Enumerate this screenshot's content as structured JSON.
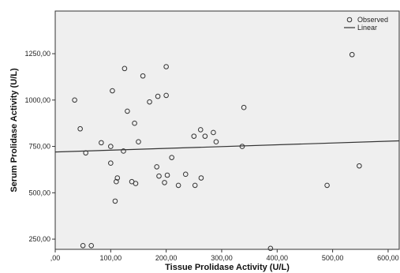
{
  "chart_data": {
    "type": "scatter",
    "xlabel": "Tissue Prolidase Activity (U/L)",
    "ylabel": "Serum Prolidase Activity (U/L)",
    "xlim": [
      0,
      620
    ],
    "ylim": [
      195,
      1480
    ],
    "x_ticks": [
      ",00",
      "100,00",
      "200,00",
      "300,00",
      "400,00",
      "500,00",
      "600,00"
    ],
    "x_tick_values": [
      0,
      100,
      200,
      300,
      400,
      500,
      600
    ],
    "y_ticks": [
      "250,00",
      "500,00",
      "750,00",
      "1000,00",
      "1250,00"
    ],
    "y_tick_values": [
      250,
      500,
      750,
      1000,
      1250
    ],
    "legend": {
      "observed": "Observed",
      "linear": "Linear",
      "position": "top-right"
    },
    "grid": false,
    "series": [
      {
        "name": "Observed",
        "points": [
          [
            35,
            1000
          ],
          [
            45,
            845
          ],
          [
            50,
            215
          ],
          [
            55,
            715
          ],
          [
            65,
            215
          ],
          [
            83,
            770
          ],
          [
            100,
            750
          ],
          [
            100,
            660
          ],
          [
            103,
            1050
          ],
          [
            108,
            455
          ],
          [
            110,
            560
          ],
          [
            112,
            580
          ],
          [
            123,
            725
          ],
          [
            125,
            1170
          ],
          [
            130,
            940
          ],
          [
            138,
            560
          ],
          [
            143,
            875
          ],
          [
            145,
            550
          ],
          [
            150,
            775
          ],
          [
            158,
            1130
          ],
          [
            170,
            990
          ],
          [
            183,
            640
          ],
          [
            185,
            1020
          ],
          [
            187,
            590
          ],
          [
            197,
            555
          ],
          [
            200,
            1025
          ],
          [
            200,
            1180
          ],
          [
            202,
            595
          ],
          [
            210,
            690
          ],
          [
            222,
            540
          ],
          [
            235,
            600
          ],
          [
            250,
            805
          ],
          [
            252,
            540
          ],
          [
            262,
            840
          ],
          [
            263,
            580
          ],
          [
            270,
            805
          ],
          [
            285,
            825
          ],
          [
            290,
            775
          ],
          [
            337,
            750
          ],
          [
            340,
            960
          ],
          [
            388,
            200
          ],
          [
            490,
            540
          ],
          [
            535,
            1245
          ],
          [
            548,
            645
          ]
        ]
      },
      {
        "name": "Linear",
        "line": {
          "x": [
            0,
            620
          ],
          "y": [
            720,
            780
          ]
        }
      }
    ]
  }
}
